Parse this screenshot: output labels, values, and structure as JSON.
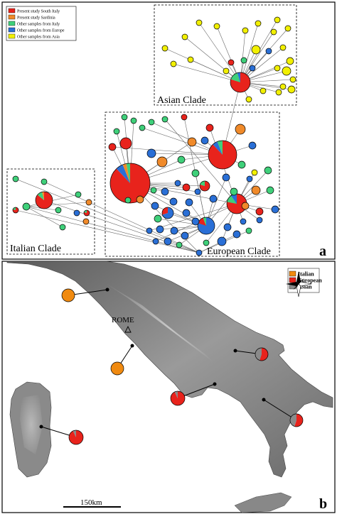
{
  "panel_a": {
    "legend": [
      {
        "label": "Present study South Italy",
        "color": "#e8231c"
      },
      {
        "label": "Present study Sardinia",
        "color": "#f08a2a"
      },
      {
        "label": "Other samples from Italy",
        "color": "#3fd07a"
      },
      {
        "label": "Other samples from Europe",
        "color": "#2a6fd6"
      },
      {
        "label": "Other samples from Asia",
        "color": "#f2f000"
      }
    ],
    "clades": {
      "asian": "Asian Clade",
      "european": "European Clade",
      "italian": "Italian Clade"
    },
    "panel_letter": "a"
  },
  "panel_b": {
    "legend": [
      {
        "label": "Italian",
        "color": "#f08a10"
      },
      {
        "label": "European",
        "color": "#e8231c"
      },
      {
        "label": "Asian",
        "color": "#8a8a8a"
      }
    ],
    "city_label": "ROME",
    "scale_label": "150km",
    "panel_letter": "b"
  },
  "colors": {
    "south_italy": "#e8231c",
    "sardinia": "#f08a2a",
    "italy": "#3fd07a",
    "europe": "#2a6fd6",
    "asia": "#f2f000",
    "map_italian": "#f08a10",
    "map_european": "#e8231c",
    "map_asian": "#8a8a8a",
    "sea": "#ffffff",
    "land": "#8c8c8c"
  }
}
